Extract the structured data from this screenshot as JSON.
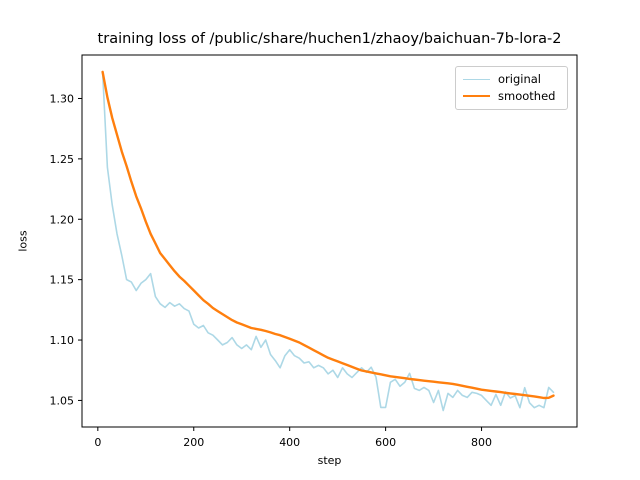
{
  "chart_data": {
    "type": "line",
    "title": "training loss of /public/share/huchen1/zhaoy/baichuan-7b-lora-2",
    "xlabel": "step",
    "ylabel": "loss",
    "xlim": [
      -33,
      999
    ],
    "ylim": [
      1.028,
      1.336
    ],
    "x_ticks": [
      0,
      200,
      400,
      600,
      800
    ],
    "x_tick_labels": [
      "0",
      "200",
      "400",
      "600",
      "800"
    ],
    "y_ticks": [
      1.05,
      1.1,
      1.15,
      1.2,
      1.25,
      1.3
    ],
    "y_tick_labels": [
      "1.05",
      "1.10",
      "1.15",
      "1.20",
      "1.25",
      "1.30"
    ],
    "grid": false,
    "legend_position": "upper right",
    "x": [
      10,
      20,
      30,
      40,
      50,
      60,
      70,
      80,
      90,
      100,
      110,
      120,
      130,
      140,
      150,
      160,
      170,
      180,
      190,
      200,
      210,
      220,
      230,
      240,
      250,
      260,
      270,
      280,
      290,
      300,
      310,
      320,
      330,
      340,
      350,
      360,
      370,
      380,
      390,
      400,
      410,
      420,
      430,
      440,
      450,
      460,
      470,
      480,
      490,
      500,
      510,
      520,
      530,
      540,
      550,
      560,
      570,
      580,
      590,
      600,
      610,
      620,
      630,
      640,
      650,
      660,
      670,
      680,
      690,
      700,
      710,
      720,
      730,
      740,
      750,
      760,
      770,
      780,
      790,
      800,
      810,
      820,
      830,
      840,
      850,
      860,
      870,
      880,
      890,
      900,
      910,
      920,
      930,
      940,
      950
    ],
    "series": [
      {
        "name": "original",
        "color": "#add8e6",
        "linewidth": 1.6,
        "values": [
          1.322,
          1.243,
          1.212,
          1.188,
          1.17,
          1.15,
          1.148,
          1.141,
          1.147,
          1.15,
          1.155,
          1.136,
          1.13,
          1.127,
          1.131,
          1.128,
          1.13,
          1.126,
          1.124,
          1.113,
          1.11,
          1.112,
          1.106,
          1.104,
          1.1,
          1.096,
          1.098,
          1.102,
          1.096,
          1.093,
          1.096,
          1.092,
          1.103,
          1.094,
          1.1,
          1.088,
          1.083,
          1.077,
          1.087,
          1.092,
          1.087,
          1.085,
          1.081,
          1.082,
          1.077,
          1.079,
          1.077,
          1.072,
          1.075,
          1.069,
          1.077,
          1.072,
          1.069,
          1.073,
          1.077,
          1.0733,
          1.0775,
          1.0692,
          1.0442,
          1.0442,
          1.065,
          1.0675,
          1.0617,
          1.065,
          1.0725,
          1.06,
          1.0583,
          1.0608,
          1.0583,
          1.0483,
          1.0583,
          1.0417,
          1.0558,
          1.0525,
          1.0583,
          1.0542,
          1.0525,
          1.0567,
          1.0558,
          1.0542,
          1.05,
          1.046,
          1.055,
          1.046,
          1.057,
          1.052,
          1.054,
          1.044,
          1.0605,
          1.048,
          1.044,
          1.046,
          1.044,
          1.0608,
          1.0567
        ]
      },
      {
        "name": "smoothed",
        "color": "#ff7f0e",
        "linewidth": 2.4,
        "values": [
          1.322,
          1.301,
          1.284,
          1.27,
          1.256,
          1.244,
          1.231,
          1.219,
          1.209,
          1.198,
          1.188,
          1.18,
          1.172,
          1.167,
          1.162,
          1.157,
          1.1525,
          1.149,
          1.145,
          1.141,
          1.137,
          1.133,
          1.13,
          1.1265,
          1.124,
          1.1215,
          1.119,
          1.1165,
          1.1145,
          1.113,
          1.1115,
          1.11,
          1.1092,
          1.1085,
          1.1075,
          1.1063,
          1.105,
          1.104,
          1.1025,
          1.101,
          1.0995,
          1.098,
          1.0958,
          1.0937,
          1.0916,
          1.0895,
          1.0874,
          1.0853,
          1.0838,
          1.0823,
          1.0808,
          1.0793,
          1.0778,
          1.0763,
          1.0748,
          1.074,
          1.0732,
          1.0724,
          1.0716,
          1.0708,
          1.07,
          1.0695,
          1.0689,
          1.0684,
          1.0678,
          1.0673,
          1.0668,
          1.0663,
          1.0659,
          1.0655,
          1.065,
          1.0646,
          1.0642,
          1.0637,
          1.0629,
          1.0621,
          1.0613,
          1.0605,
          1.0597,
          1.0589,
          1.0584,
          1.0579,
          1.0574,
          1.0569,
          1.0563,
          1.0558,
          1.0553,
          1.0548,
          1.0543,
          1.0538,
          1.0533,
          1.0527,
          1.052,
          1.0522,
          1.054
        ]
      }
    ],
    "axis_color": "#000000",
    "tick_label_color": "#000000"
  }
}
